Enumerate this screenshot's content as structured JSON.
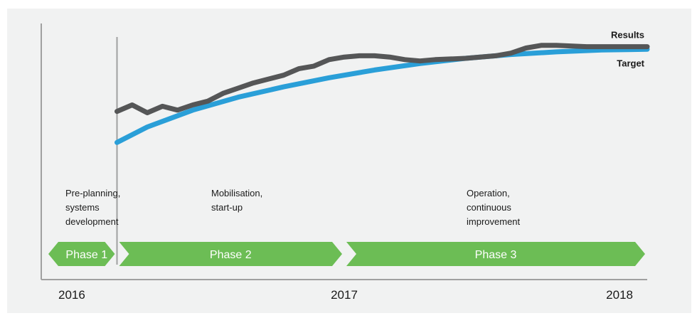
{
  "chart_data": {
    "type": "line",
    "x_ticks": [
      "2016",
      "2017",
      "2018"
    ],
    "series": [
      {
        "name": "Results",
        "color": "#555657",
        "points": [
          [
            2016.25,
            0.48
          ],
          [
            2016.3,
            0.53
          ],
          [
            2016.35,
            0.47
          ],
          [
            2016.4,
            0.52
          ],
          [
            2016.45,
            0.49
          ],
          [
            2016.5,
            0.53
          ],
          [
            2016.55,
            0.56
          ],
          [
            2016.6,
            0.62
          ],
          [
            2016.65,
            0.66
          ],
          [
            2016.7,
            0.7
          ],
          [
            2016.75,
            0.73
          ],
          [
            2016.8,
            0.76
          ],
          [
            2016.85,
            0.81
          ],
          [
            2016.9,
            0.83
          ],
          [
            2016.95,
            0.88
          ],
          [
            2017.0,
            0.9
          ],
          [
            2017.05,
            0.91
          ],
          [
            2017.1,
            0.91
          ],
          [
            2017.15,
            0.9
          ],
          [
            2017.2,
            0.88
          ],
          [
            2017.25,
            0.87
          ],
          [
            2017.3,
            0.88
          ],
          [
            2017.4,
            0.89
          ],
          [
            2017.5,
            0.91
          ],
          [
            2017.55,
            0.93
          ],
          [
            2017.6,
            0.97
          ],
          [
            2017.65,
            0.99
          ],
          [
            2017.7,
            0.99
          ],
          [
            2017.8,
            0.98
          ],
          [
            2018.0,
            0.98
          ]
        ]
      },
      {
        "name": "Target",
        "color": "#2a9fd8",
        "points": [
          [
            2016.25,
            0.24
          ],
          [
            2016.35,
            0.36
          ],
          [
            2016.5,
            0.49
          ],
          [
            2016.65,
            0.59
          ],
          [
            2016.8,
            0.67
          ],
          [
            2016.95,
            0.74
          ],
          [
            2017.1,
            0.8
          ],
          [
            2017.25,
            0.85
          ],
          [
            2017.4,
            0.89
          ],
          [
            2017.55,
            0.92
          ],
          [
            2017.7,
            0.94
          ],
          [
            2017.85,
            0.955
          ],
          [
            2018.0,
            0.96
          ]
        ]
      }
    ],
    "phase_marker_x": 2016.25,
    "xlim": [
      2016,
      2018
    ],
    "ylim": [
      0,
      1
    ]
  },
  "phases": [
    {
      "label": "Phase 1",
      "description": [
        "Pre-planning,",
        "systems",
        "development"
      ],
      "start": 2016.0,
      "end": 2016.25,
      "color": "#6cbd55"
    },
    {
      "label": "Phase 2",
      "description": [
        "Mobilisation,",
        "start-up"
      ],
      "start": 2016.25,
      "end": 2017.0,
      "color": "#6cbd55"
    },
    {
      "label": "Phase 3",
      "description": [
        "Operation,",
        "continuous",
        "improvement"
      ],
      "start": 2017.0,
      "end": 2018.0,
      "color": "#6cbd55"
    }
  ],
  "colors": {
    "panel_background": "#f1f2f2",
    "axis": "#a0a0a0",
    "phase_band": "#6cbd55"
  }
}
